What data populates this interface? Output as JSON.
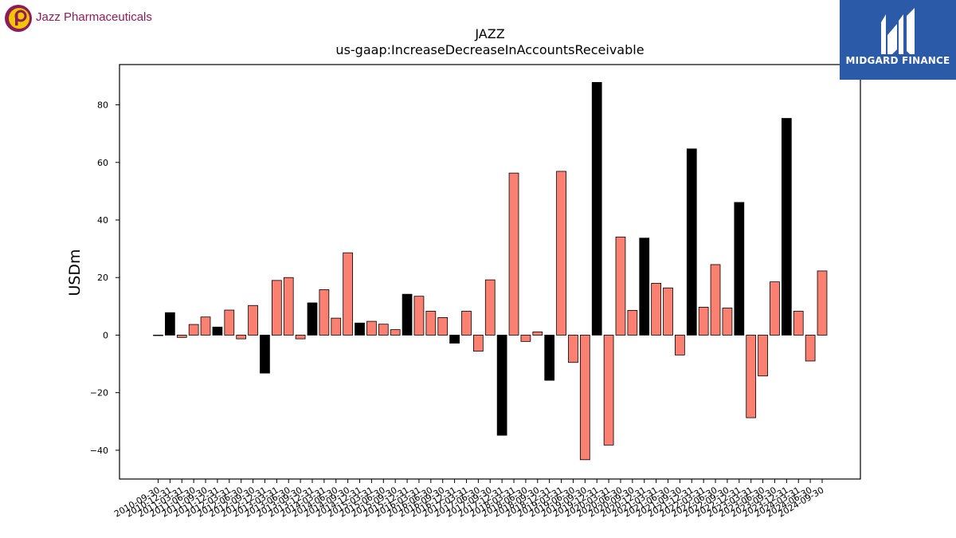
{
  "logos": {
    "left_text": "Jazz Pharmaceuticals",
    "right_text": "MIDGARD FINANCE"
  },
  "colors": {
    "annual_bar": "#000000",
    "quarter_bar": "#fa8072",
    "bar_edge": "#000000",
    "left_logo_purple": "#8c1d5a",
    "left_logo_yellow": "#f2c500",
    "right_logo_bg": "#2a5aa8"
  },
  "chart_data": {
    "type": "bar",
    "title": "JAZZ",
    "subtitle": "us-gaap:IncreaseDecreaseInAccountsReceivable",
    "xlabel": "",
    "ylabel": "USDm",
    "ylim": [
      -50,
      94
    ],
    "yticks": [
      -40,
      -20,
      0,
      20,
      40,
      60,
      80
    ],
    "grid": false,
    "legend": "none",
    "xtick_labels": [
      "2010-09-30",
      "2010-12-31",
      "2011-03-31",
      "2011-06-30",
      "2011-09-30",
      "2011-12-31",
      "2012-03-31",
      "2012-06-30",
      "2012-09-30",
      "2012-12-31",
      "2013-03-31",
      "2013-06-30",
      "2013-09-30",
      "2013-12-31",
      "2014-03-31",
      "2014-06-30",
      "2014-09-30",
      "2014-12-31",
      "2015-03-31",
      "2015-06-30",
      "2015-09-30",
      "2015-12-31",
      "2016-03-31",
      "2016-06-30",
      "2016-09-30",
      "2016-12-31",
      "2017-03-31",
      "2017-06-30",
      "2017-09-30",
      "2017-12-31",
      "2018-03-31",
      "2018-06-30",
      "2018-09-30",
      "2018-12-31",
      "2019-03-31",
      "2019-06-30",
      "2019-09-30",
      "2019-12-31",
      "2020-03-31",
      "2020-06-30",
      "2020-09-30",
      "2020-12-31",
      "2021-03-31",
      "2021-06-30",
      "2021-09-30",
      "2021-12-31",
      "2022-03-31",
      "2022-06-30",
      "2022-09-30",
      "2022-12-31",
      "2023-03-31",
      "2023-06-30",
      "2023-09-30",
      "2023-12-31",
      "2024-03-31",
      "2024-06-30",
      "2024-09-30"
    ],
    "values": [
      0.0,
      7.8,
      -0.8,
      3.7,
      6.3,
      2.8,
      8.7,
      -1.3,
      10.3,
      -13.2,
      19.0,
      20.0,
      -1.3,
      11.2,
      15.8,
      5.9,
      28.6,
      4.2,
      4.8,
      3.8,
      1.9,
      14.2,
      13.5,
      8.3,
      6.1,
      -2.8,
      8.3,
      -5.6,
      19.2,
      -34.8,
      56.3,
      -2.2,
      1.1,
      -15.7,
      56.9,
      -9.5,
      -43.3,
      87.8,
      -38.2,
      34.1,
      8.6,
      33.7,
      18.0,
      16.4,
      -6.9,
      64.7,
      9.7,
      24.5,
      9.4,
      46.1,
      -28.7,
      -14.2,
      18.5,
      75.3,
      8.3,
      -9.0,
      22.3
    ],
    "bar_kind": [
      "annual",
      "annual",
      "quarter",
      "quarter",
      "quarter",
      "annual",
      "quarter",
      "quarter",
      "quarter",
      "annual",
      "quarter",
      "quarter",
      "quarter",
      "annual",
      "quarter",
      "quarter",
      "quarter",
      "annual",
      "quarter",
      "quarter",
      "quarter",
      "annual",
      "quarter",
      "quarter",
      "quarter",
      "annual",
      "quarter",
      "quarter",
      "quarter",
      "annual",
      "quarter",
      "quarter",
      "quarter",
      "annual",
      "quarter",
      "quarter",
      "quarter",
      "annual",
      "quarter",
      "quarter",
      "quarter",
      "annual",
      "quarter",
      "quarter",
      "quarter",
      "annual",
      "quarter",
      "quarter",
      "quarter",
      "annual",
      "quarter",
      "quarter",
      "quarter",
      "annual",
      "quarter",
      "quarter",
      "quarter"
    ]
  }
}
